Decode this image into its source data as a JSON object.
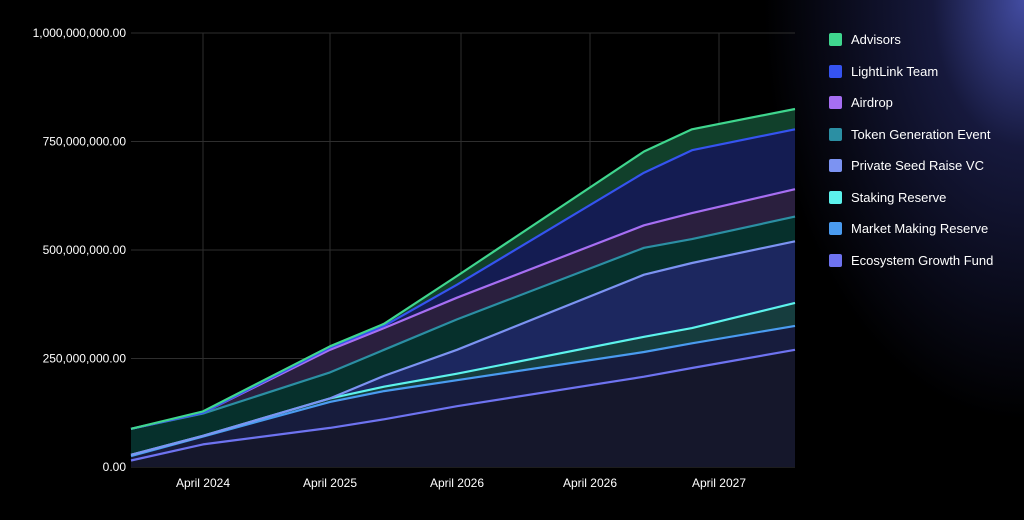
{
  "chart_data": {
    "type": "area",
    "title": "",
    "xlabel": "",
    "ylabel": "",
    "x_tick_labels": [
      "April 2024",
      "April 2025",
      "April 2026",
      "April 2026",
      "April 2027"
    ],
    "y_tick_labels": [
      "0.00",
      "250,000,000.00",
      "500,000,000.00",
      "750,000,000.00",
      "1,000,000,000.00"
    ],
    "ylim": [
      0,
      1000000000
    ],
    "grid": true,
    "legend_position": "right",
    "x": [
      "April 2023",
      "April 2024",
      "April 2025",
      "Aug 2025",
      "April 2026",
      "Jan 2027",
      "April 2027",
      "Sep 2027"
    ],
    "series": [
      {
        "name": "Ecosystem Growth Fund",
        "color": "#6E73F0",
        "fill": "#15172B",
        "values": [
          15000000,
          52000000,
          90000000,
          110000000,
          140000000,
          208000000,
          228000000,
          270000000
        ]
      },
      {
        "name": "Market Making Reserve",
        "color": "#4A9BF0",
        "fill": "#171C3D",
        "values": [
          25000000,
          70000000,
          150000000,
          175000000,
          200000000,
          265000000,
          285000000,
          325000000
        ]
      },
      {
        "name": "Staking Reserve",
        "color": "#5CF2EC",
        "fill": "#163D3E",
        "values": [
          28000000,
          72000000,
          158000000,
          185000000,
          215000000,
          300000000,
          320000000,
          378000000
        ]
      },
      {
        "name": "Private Seed Raise VC",
        "color": "#7C93F2",
        "fill": "#1C275F",
        "values": [
          28000000,
          72000000,
          158000000,
          210000000,
          270000000,
          443000000,
          470000000,
          520000000
        ]
      },
      {
        "name": "Token Generation Event",
        "color": "#2B8FA3",
        "fill": "#06302C",
        "values": [
          88000000,
          123000000,
          218000000,
          270000000,
          340000000,
          505000000,
          525000000,
          577000000
        ]
      },
      {
        "name": "Airdrop",
        "color": "#A66EF2",
        "fill": "#2A1F3E",
        "values": [
          88000000,
          125000000,
          270000000,
          320000000,
          390000000,
          557000000,
          585000000,
          640000000
        ]
      },
      {
        "name": "LightLink Team",
        "color": "#3553F0",
        "fill": "#141C52",
        "values": [
          88000000,
          125000000,
          275000000,
          325000000,
          420000000,
          678000000,
          730000000,
          778000000
        ]
      },
      {
        "name": "Advisors",
        "color": "#3FD68E",
        "fill": "#11402B",
        "values": [
          88000000,
          128000000,
          278000000,
          330000000,
          440000000,
          727000000,
          778000000,
          825000000
        ]
      }
    ]
  },
  "legend": {
    "items": [
      {
        "label": "Advisors",
        "color": "#3FD68E"
      },
      {
        "label": "LightLink Team",
        "color": "#3553F0"
      },
      {
        "label": "Airdrop",
        "color": "#A66EF2"
      },
      {
        "label": "Token Generation Event",
        "color": "#2B8FA3"
      },
      {
        "label": "Private Seed Raise VC",
        "color": "#7C93F2"
      },
      {
        "label": "Staking Reserve",
        "color": "#5CF2EC"
      },
      {
        "label": "Market Making Reserve",
        "color": "#4A9BF0"
      },
      {
        "label": "Ecosystem Growth Fund",
        "color": "#6E73F0"
      }
    ]
  }
}
